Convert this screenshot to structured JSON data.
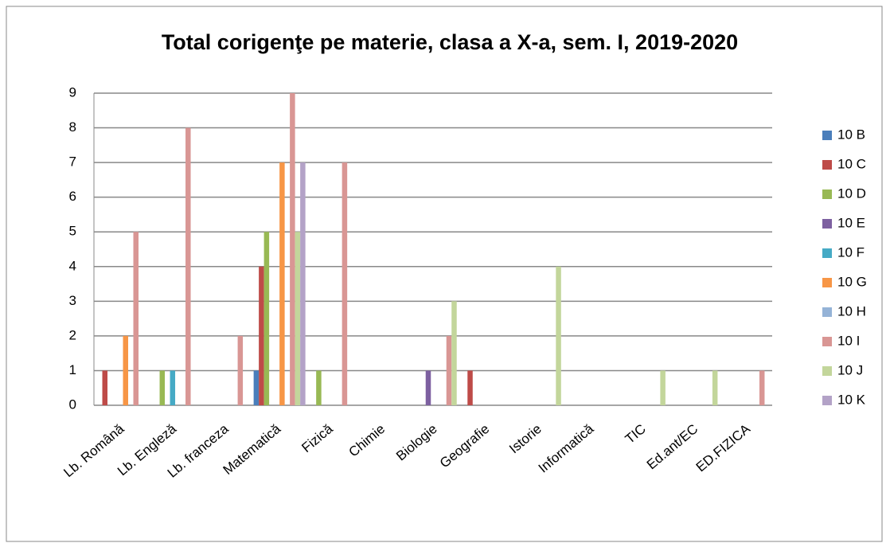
{
  "chart_data": {
    "type": "bar",
    "title": "Total corigenţe pe materie, clasa a X-a, sem. I, 2019-2020",
    "categories": [
      "Lb. Română",
      "Lb. Engleză",
      "Lb. franceza",
      "Matematică",
      "Fizică",
      "Chimie",
      "Biologie",
      "Geografie",
      "Istorie",
      "Informatică",
      "TIC",
      "Ed.ant/EC",
      "ED.FIZICA"
    ],
    "series": [
      {
        "name": "10 B",
        "color": "#4a7ebb",
        "values": [
          0,
          0,
          0,
          1,
          0,
          0,
          0,
          0,
          0,
          0,
          0,
          0,
          0
        ]
      },
      {
        "name": "10 C",
        "color": "#be4b48",
        "values": [
          1,
          0,
          0,
          4,
          0,
          0,
          0,
          1,
          0,
          0,
          0,
          0,
          0
        ]
      },
      {
        "name": "10 D",
        "color": "#98b954",
        "values": [
          0,
          1,
          0,
          5,
          1,
          0,
          0,
          0,
          0,
          0,
          0,
          0,
          0
        ]
      },
      {
        "name": "10 E",
        "color": "#7d60a0",
        "values": [
          0,
          0,
          0,
          0,
          0,
          0,
          1,
          0,
          0,
          0,
          0,
          0,
          0
        ]
      },
      {
        "name": "10 F",
        "color": "#46aac5",
        "values": [
          0,
          1,
          0,
          0,
          0,
          0,
          0,
          0,
          0,
          0,
          0,
          0,
          0
        ]
      },
      {
        "name": "10 G",
        "color": "#f79646",
        "values": [
          2,
          0,
          0,
          7,
          0,
          0,
          0,
          0,
          0,
          0,
          0,
          0,
          0
        ]
      },
      {
        "name": "10 H",
        "color": "#95b3d7",
        "values": [
          0,
          0,
          0,
          0,
          0,
          0,
          0,
          0,
          0,
          0,
          0,
          0,
          0
        ]
      },
      {
        "name": "10 I",
        "color": "#d99694",
        "values": [
          5,
          8,
          2,
          9,
          7,
          0,
          2,
          0,
          0,
          0,
          0,
          0,
          1
        ]
      },
      {
        "name": "10 J",
        "color": "#c3d69b",
        "values": [
          0,
          0,
          0,
          5,
          0,
          0,
          3,
          0,
          4,
          0,
          1,
          1,
          0
        ]
      },
      {
        "name": "10 K",
        "color": "#b3a2c7",
        "values": [
          0,
          0,
          0,
          7,
          0,
          0,
          0,
          0,
          0,
          0,
          0,
          0,
          0
        ]
      }
    ],
    "ylim": [
      0,
      9
    ],
    "yticks": [
      0,
      1,
      2,
      3,
      4,
      5,
      6,
      7,
      8,
      9
    ],
    "grid": true,
    "legend": "right"
  }
}
